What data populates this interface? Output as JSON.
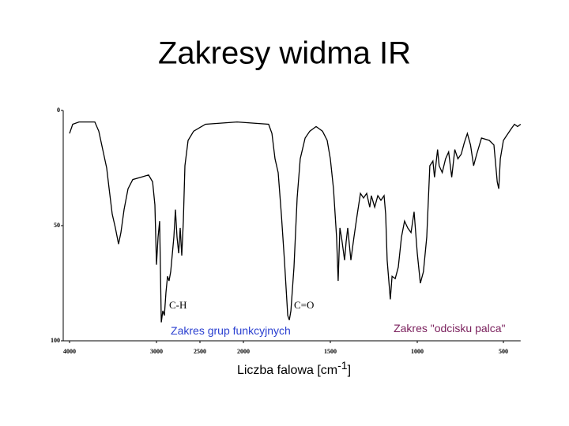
{
  "title": "Zakresy widma IR",
  "chart_data": {
    "type": "line",
    "color": "#000000",
    "x_label": {
      "text": "Liczba falowa [cm",
      "superscript": "-1",
      "suffix": "]"
    },
    "annotations": [
      {
        "text": "C-H",
        "x": 2855,
        "y": 85,
        "color": "#000000"
      },
      {
        "text": "C=O",
        "x": 1709,
        "y": 85,
        "color": "#000000"
      },
      {
        "text": "Zakres grup funkcyjnych",
        "x": 2836,
        "y": 96,
        "color": "#2a3fd0"
      },
      {
        "text": "Zakres \"odcisku palca\"",
        "x": 1136,
        "y": 95,
        "color": "#7a1f5c"
      }
    ],
    "xlim": [
      4000,
      400
    ],
    "xticks": [
      4000,
      3000,
      2500,
      2000,
      1500,
      1000,
      500
    ],
    "ylim": [
      0,
      100
    ],
    "yticks": [
      0,
      50,
      100
    ],
    "x": [
      4000,
      3964,
      3891,
      3709,
      3664,
      3618,
      3573,
      3545,
      3509,
      3473,
      3436,
      3409,
      3373,
      3327,
      3273,
      3182,
      3091,
      3045,
      3018,
      3000,
      2982,
      2964,
      2945,
      2927,
      2909,
      2891,
      2873,
      2855,
      2836,
      2800,
      2782,
      2764,
      2745,
      2727,
      2709,
      2691,
      2673,
      2636,
      2573,
      2436,
      2073,
      1855,
      1836,
      1818,
      1800,
      1782,
      1764,
      1745,
      1736,
      1727,
      1709,
      1691,
      1673,
      1645,
      1618,
      1582,
      1545,
      1518,
      1500,
      1482,
      1464,
      1455,
      1445,
      1436,
      1418,
      1409,
      1400,
      1382,
      1364,
      1345,
      1327,
      1309,
      1291,
      1273,
      1264,
      1245,
      1227,
      1209,
      1191,
      1182,
      1173,
      1155,
      1145,
      1127,
      1109,
      1091,
      1073,
      1055,
      1036,
      1018,
      1000,
      982,
      964,
      945,
      927,
      909,
      900,
      882,
      873,
      855,
      836,
      818,
      800,
      782,
      764,
      745,
      727,
      709,
      691,
      673,
      655,
      627,
      582,
      555,
      536,
      527,
      518,
      500,
      482,
      455,
      436,
      418,
      400
    ],
    "values": [
      10,
      6,
      5,
      5,
      9,
      17,
      25,
      34,
      45,
      51,
      58,
      53,
      43,
      34,
      30,
      29,
      28,
      31,
      41,
      67,
      55,
      48,
      92,
      87,
      89,
      79,
      72,
      74,
      70,
      55,
      43,
      55,
      62,
      51,
      63,
      48,
      24,
      13,
      9,
      6,
      5,
      6,
      10,
      21,
      27,
      45,
      65,
      89,
      91,
      87,
      68,
      38,
      21,
      12,
      9,
      7,
      9,
      13,
      21,
      34,
      55,
      74,
      51,
      55,
      65,
      57,
      51,
      65,
      55,
      45,
      36,
      38,
      36,
      42,
      37,
      42,
      37,
      39,
      37,
      45,
      65,
      82,
      72,
      73,
      68,
      55,
      48,
      51,
      53,
      44,
      62,
      75,
      70,
      55,
      24,
      22,
      29,
      17,
      24,
      27,
      21,
      18,
      29,
      17,
      21,
      19,
      14,
      10,
      15,
      24,
      19,
      12,
      13,
      15,
      31,
      34,
      21,
      13,
      11,
      8,
      6,
      7,
      6
    ]
  }
}
